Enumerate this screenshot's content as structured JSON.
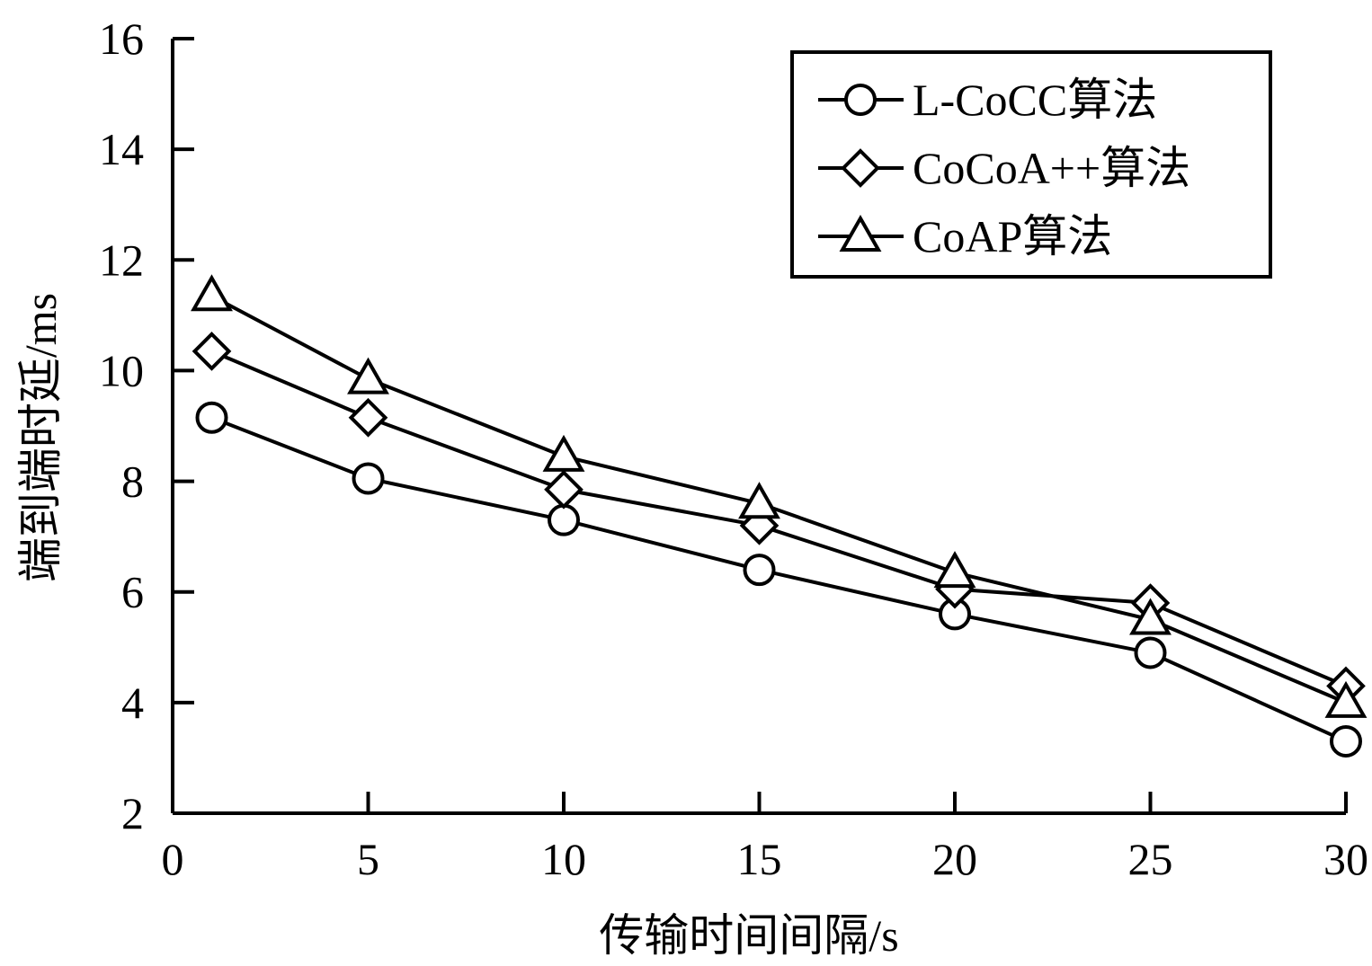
{
  "chart_data": {
    "type": "line",
    "title": "",
    "xlabel": "传输时间间隔/s",
    "ylabel": "端到端时延/ms",
    "xlim": [
      0,
      30
    ],
    "ylim": [
      2,
      16
    ],
    "xticks": [
      0,
      5,
      10,
      15,
      20,
      25,
      30
    ],
    "yticks": [
      2,
      4,
      6,
      8,
      10,
      12,
      14,
      16
    ],
    "grid": false,
    "legend_position": "top-right",
    "x": [
      1,
      5,
      10,
      15,
      20,
      25,
      30
    ],
    "series": [
      {
        "name": "L-CoCC算法",
        "marker": "circle",
        "values": [
          9.15,
          8.05,
          7.3,
          6.4,
          5.6,
          4.9,
          3.3
        ]
      },
      {
        "name": "CoCoA++算法",
        "marker": "diamond",
        "values": [
          10.35,
          9.15,
          7.85,
          7.2,
          6.05,
          5.8,
          4.3
        ]
      },
      {
        "name": "CoAP算法",
        "marker": "triangle",
        "values": [
          11.35,
          9.85,
          8.45,
          7.6,
          6.35,
          5.5,
          4.0
        ]
      }
    ]
  }
}
